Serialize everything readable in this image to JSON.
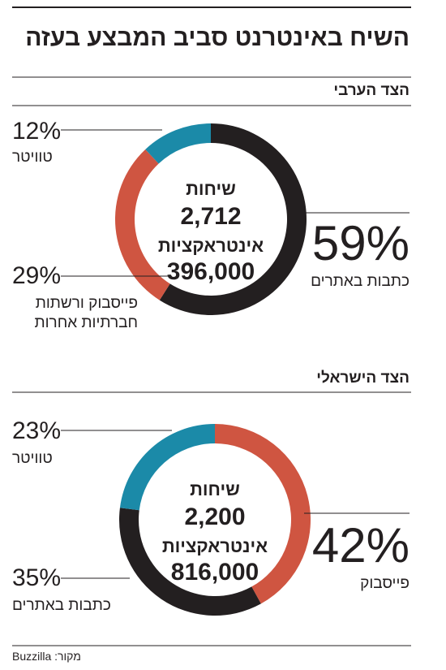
{
  "title": "השיח באינטרנט סביב המבצע בעזה",
  "source": "מקור: Buzzilla",
  "chart_data": [
    {
      "type": "pie",
      "title": "הצד הערבי",
      "categories": [
        "כתבות באתרים",
        "פייסבוק ורשתות חברתיות אחרות",
        "טוויטר"
      ],
      "values": [
        59,
        29,
        12
      ],
      "value_labels": [
        "59%",
        "29%",
        "12%"
      ],
      "colors": [
        "#231f20",
        "#cf5541",
        "#1b8aa8"
      ],
      "stats": [
        {
          "name": "שיחות",
          "value": "2,712"
        },
        {
          "name": "אינטראקציות",
          "value": "396,000"
        }
      ]
    },
    {
      "type": "pie",
      "title": "הצד הישראלי",
      "categories": [
        "פייסבוק",
        "כתבות באתרים",
        "טוויטר"
      ],
      "values": [
        42,
        35,
        23
      ],
      "value_labels": [
        "42%",
        "35%",
        "23%"
      ],
      "colors": [
        "#cf5541",
        "#231f20",
        "#1b8aa8"
      ],
      "stats": [
        {
          "name": "שיחות",
          "value": "2,200"
        },
        {
          "name": "אינטראקציות",
          "value": "816,000"
        }
      ]
    }
  ]
}
